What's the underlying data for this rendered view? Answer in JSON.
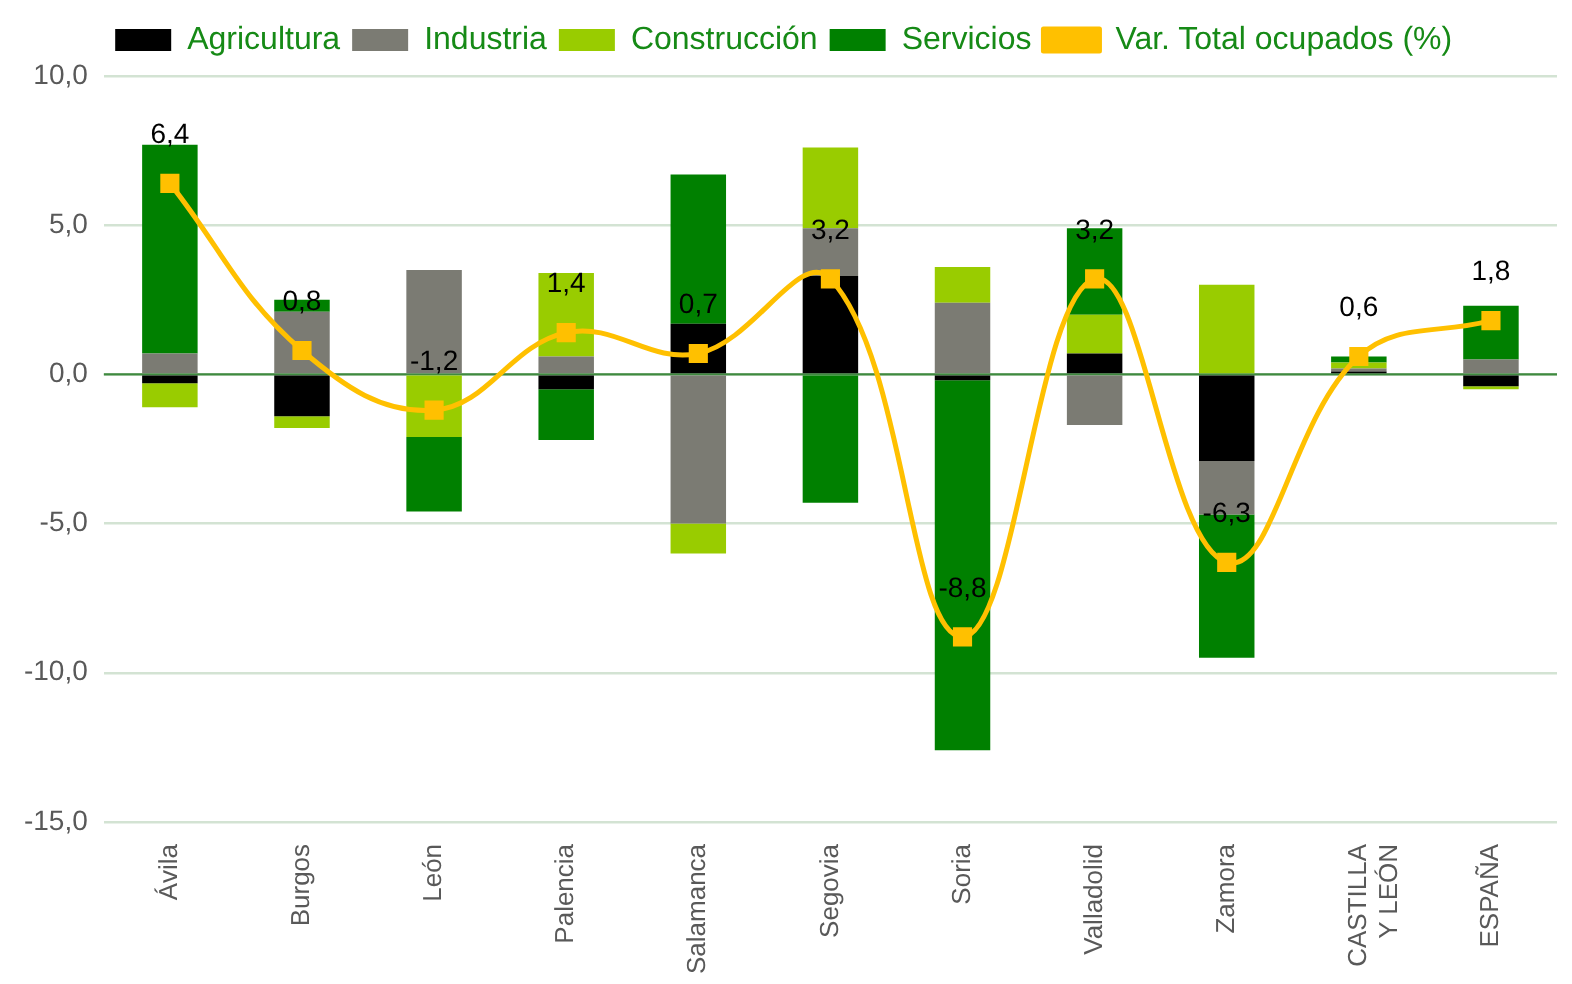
{
  "chart_data": {
    "type": "bar",
    "stacked": true,
    "categories": [
      "Ávila",
      "Burgos",
      "León",
      "Palencia",
      "Salamanca",
      "Segovia",
      "Soria",
      "Valladolid",
      "Zamora",
      "CASTILLA Y LEÓN",
      "ESPAÑA"
    ],
    "series": [
      {
        "name": "Agricultura",
        "color": "#000000",
        "values": [
          -0.3,
          -1.4,
          0,
          -0.5,
          1.7,
          3.3,
          -0.2,
          0.7,
          -2.9,
          0.1,
          -0.4
        ]
      },
      {
        "name": "Industria",
        "color": "#7b7b73",
        "values": [
          0.7,
          2.1,
          3.5,
          0.6,
          -5.0,
          1.6,
          2.4,
          -1.7,
          -1.8,
          0.1,
          0.5
        ]
      },
      {
        "name": "Construcción",
        "color": "#99cc00",
        "values": [
          -0.8,
          -0.4,
          -2.1,
          2.8,
          -1.0,
          2.7,
          1.2,
          1.3,
          3.0,
          0.2,
          -0.1
        ]
      },
      {
        "name": "Servicios",
        "color": "#008000",
        "values": [
          7.0,
          0.4,
          -2.5,
          -1.7,
          5.0,
          -4.3,
          -12.4,
          2.9,
          -4.8,
          0.2,
          1.8
        ]
      },
      {
        "name": "Var. Total ocupados (%)",
        "type": "line",
        "color": "#ffc000",
        "marker": "square",
        "values": [
          6.4,
          0.8,
          -1.2,
          1.4,
          0.7,
          3.2,
          -8.8,
          3.2,
          -6.3,
          0.6,
          1.8
        ],
        "value_labels": [
          "6,4",
          "0,8",
          "-1,2",
          "1,4",
          "0,7",
          "3,2",
          "-8,8",
          "3,2",
          "-6,3",
          "0,6",
          "1,8"
        ]
      }
    ],
    "ylim": [
      -15,
      10
    ],
    "yticks": [
      {
        "value": -15,
        "label": "-15,0"
      },
      {
        "value": -10,
        "label": "-10,0"
      },
      {
        "value": -5,
        "label": "-5,0"
      },
      {
        "value": 0,
        "label": "0,0"
      },
      {
        "value": 5,
        "label": "5,0"
      },
      {
        "value": 10,
        "label": "10,0"
      }
    ],
    "ref_lines": [
      {
        "axis": "y",
        "value": 0,
        "color": "#3f8a3f"
      }
    ],
    "grid": "y",
    "legend": "top"
  }
}
